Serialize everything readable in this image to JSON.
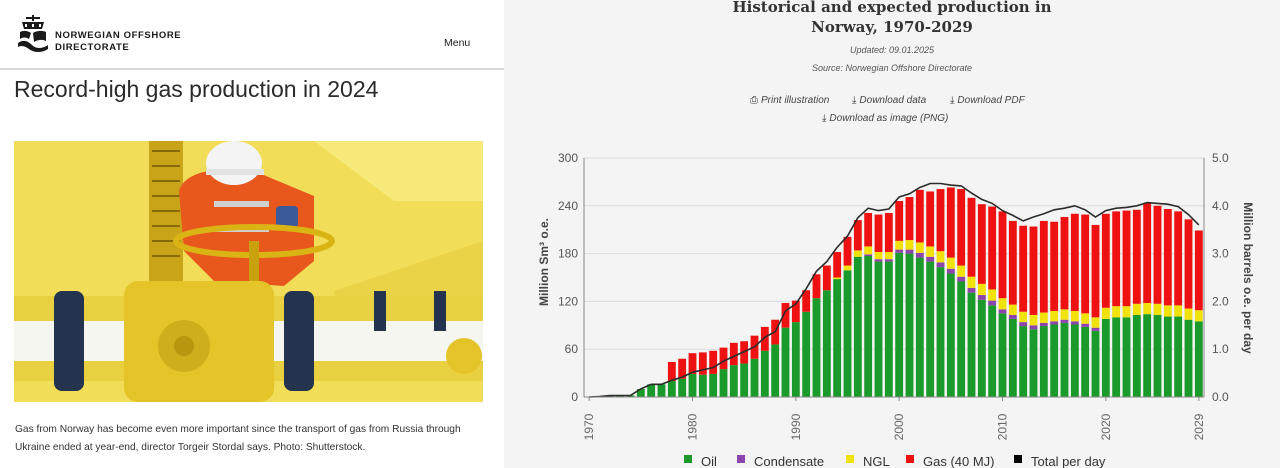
{
  "site": {
    "org_name_line1": "NORWEGIAN OFFSHORE",
    "org_name_line2": "DIRECTORATE",
    "menu_label": "Menu"
  },
  "article": {
    "title": "Record-high gas production in 2024",
    "caption": "Gas from Norway has become even more important since the transport of gas from Russia through Ukraine ended at year-end, director Torgeir Stordal says. Photo: Shutterstock."
  },
  "chart_panel": {
    "title_line1": "Historical and expected production in",
    "title_line2": "Norway, 1970-2029",
    "updated": "Updated: 09.01.2025",
    "source": "Source: Norwegian Offshore Directorate",
    "actions": {
      "print": "Print illustration",
      "download_data": "Download data",
      "download_pdf": "Download PDF",
      "download_png": "Download as image (PNG)"
    },
    "icons": {
      "print": "printer-icon",
      "download": "download-icon"
    }
  },
  "chart_data": {
    "type": "bar",
    "stacked": true,
    "title": "Historical and expected production in Norway, 1970-2029",
    "ylabel": "Million Sm³ o.e.",
    "y2label": "Million barrels o.e. per day",
    "ylim": [
      0,
      300
    ],
    "y2lim": [
      0.0,
      5.0
    ],
    "yticks": [
      "0",
      "60",
      "120",
      "180",
      "240",
      "300"
    ],
    "y2ticks": [
      "0.0",
      "1.0",
      "2.0",
      "3.0",
      "4.0",
      "5.0"
    ],
    "xticks": [
      "1970",
      "1980",
      "1990",
      "2000",
      "2010",
      "2020",
      "2029"
    ],
    "x": [
      1970,
      1971,
      1972,
      1973,
      1974,
      1975,
      1976,
      1977,
      1978,
      1979,
      1980,
      1981,
      1982,
      1983,
      1984,
      1985,
      1986,
      1987,
      1988,
      1989,
      1990,
      1991,
      1992,
      1993,
      1994,
      1995,
      1996,
      1997,
      1998,
      1999,
      2000,
      2001,
      2002,
      2003,
      2004,
      2005,
      2006,
      2007,
      2008,
      2009,
      2010,
      2011,
      2012,
      2013,
      2014,
      2015,
      2016,
      2017,
      2018,
      2019,
      2020,
      2021,
      2022,
      2023,
      2024,
      2025,
      2026,
      2027,
      2028,
      2029
    ],
    "legend_position": "bottom",
    "grid": "horizontal",
    "series": [
      {
        "name": "Oil",
        "color": "#1a9a2a",
        "values": [
          0,
          0.5,
          1.8,
          1.9,
          2,
          10,
          16,
          16,
          20,
          23,
          29,
          28,
          29,
          35,
          40,
          42,
          48,
          58,
          66,
          87,
          94,
          107,
          124,
          134,
          148,
          159,
          176,
          177,
          170,
          170,
          181,
          180,
          175,
          170,
          163,
          155,
          145,
          131,
          122,
          115,
          105,
          98,
          89,
          85,
          89,
          91,
          93,
          91,
          88,
          83,
          98,
          100,
          100,
          103,
          104,
          103,
          101,
          101,
          97,
          95
        ]
      },
      {
        "name": "Condensate",
        "color": "#8e44ad",
        "values": [
          0,
          0,
          0,
          0,
          0,
          0,
          0,
          0,
          0,
          0,
          0,
          0,
          0,
          0,
          0,
          0,
          0,
          0,
          0,
          0,
          0,
          0,
          0,
          0,
          0,
          0,
          0,
          2,
          3,
          3,
          4,
          5,
          6,
          6,
          6,
          6,
          6,
          6,
          6,
          6,
          5,
          5,
          5,
          5,
          4,
          4,
          4,
          4,
          4,
          4,
          0,
          0,
          0,
          0,
          0,
          0,
          0,
          0,
          0,
          0
        ]
      },
      {
        "name": "NGL",
        "color": "#f2e20c",
        "values": [
          0,
          0,
          0,
          0,
          0,
          0,
          0,
          0,
          0,
          0,
          0,
          0,
          0,
          0,
          0,
          0,
          0,
          0,
          0,
          0,
          0,
          0,
          0,
          0,
          2,
          6,
          8,
          10,
          9,
          9,
          11,
          12,
          13,
          13,
          14,
          14,
          14,
          14,
          14,
          14,
          14,
          13,
          13,
          13,
          13,
          13,
          13,
          13,
          13,
          13,
          14,
          14,
          14,
          14,
          14,
          14,
          14,
          14,
          14,
          14
        ]
      },
      {
        "name": "Gas (40 MJ)",
        "color": "#ee1111",
        "values": [
          0,
          0,
          0,
          0,
          0,
          0,
          0,
          0,
          24,
          25,
          26,
          28,
          29,
          27,
          28,
          28,
          29,
          30,
          31,
          31,
          27,
          27,
          30,
          31,
          32,
          36,
          38,
          42,
          47,
          49,
          50,
          54,
          66,
          69,
          78,
          88,
          96,
          99,
          100,
          104,
          109,
          105,
          108,
          111,
          115,
          112,
          116,
          122,
          124,
          116,
          118,
          119,
          120,
          118,
          125,
          123,
          121,
          118,
          112,
          100
        ]
      },
      {
        "name": "Total per day",
        "color": "#000000",
        "type": "line",
        "values": [
          0,
          0.5,
          1.8,
          1.9,
          2,
          10,
          16,
          16,
          21,
          25,
          31,
          34,
          37,
          45,
          51,
          57,
          63,
          75,
          82,
          108,
          117,
          136,
          158,
          170,
          188,
          202,
          225,
          237,
          234,
          236,
          251,
          255,
          263,
          268,
          268,
          266,
          265,
          256,
          248,
          243,
          234,
          228,
          221,
          226,
          230,
          235,
          237,
          240,
          235,
          226,
          234,
          237,
          238,
          240,
          244,
          243,
          242,
          239,
          229,
          216
        ]
      }
    ]
  }
}
